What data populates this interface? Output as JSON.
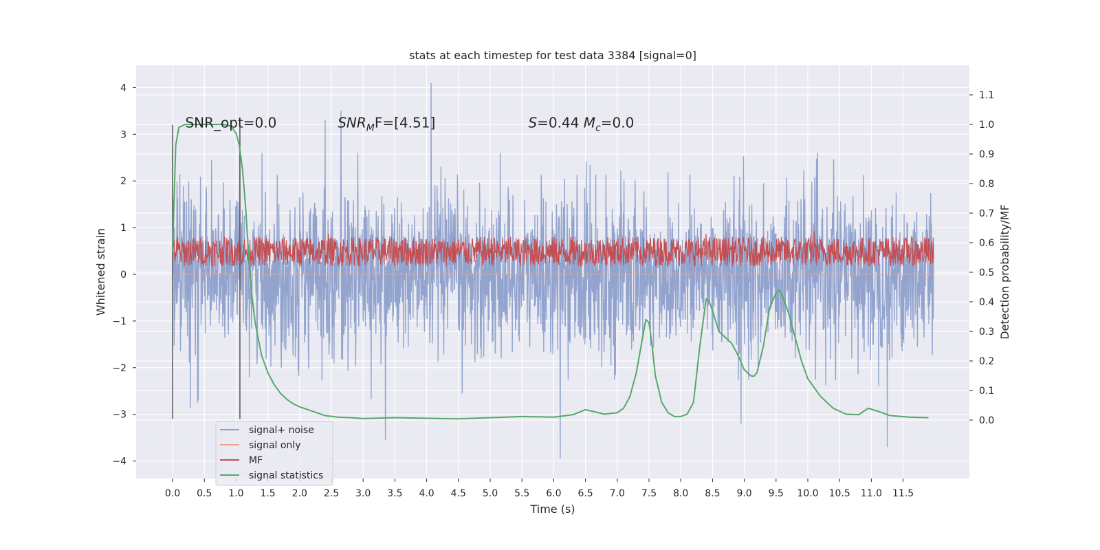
{
  "chart_data": {
    "type": "line",
    "title": "stats at each timestep for test data 3384 [signal=0]",
    "xlabel": "Time (s)",
    "ylabel_left": "Whitened strain",
    "ylabel_right": "Detection probability/MF",
    "xlim": [
      -0.5,
      12.5
    ],
    "ylim_left": [
      -4.4,
      4.5
    ],
    "ylim_right": [
      -0.2,
      1.2
    ],
    "x_ticks": [
      0.0,
      0.5,
      1.0,
      1.5,
      2.0,
      2.5,
      3.0,
      3.5,
      4.0,
      4.5,
      5.0,
      5.5,
      6.0,
      6.5,
      7.0,
      7.5,
      8.0,
      8.5,
      9.0,
      9.5,
      10.0,
      10.5,
      11.0,
      11.5
    ],
    "x_tick_labels": [
      "0.0",
      "0.5",
      "1.0",
      "1.5",
      "2.0",
      "2.5",
      "3.0",
      "3.5",
      "4.0",
      "4.5",
      "5.0",
      "5.5",
      "6.0",
      "6.5",
      "7.0",
      "7.5",
      "8.0",
      "8.5",
      "9.0",
      "9.5",
      "10.0",
      "10.5",
      "11.0",
      "11.5"
    ],
    "y_left_ticks": [
      -4,
      -3,
      -2,
      -1,
      0,
      1,
      2,
      3,
      4
    ],
    "y_left_tick_labels": [
      "−4",
      "−3",
      "−2",
      "−1",
      "0",
      "1",
      "2",
      "3",
      "4"
    ],
    "y_right_ticks": [
      0.0,
      0.1,
      0.2,
      0.3,
      0.4,
      0.5,
      0.6,
      0.7,
      0.8,
      0.9,
      1.0,
      1.1
    ],
    "y_right_tick_labels": [
      "0.0",
      "0.1",
      "0.2",
      "0.3",
      "0.4",
      "0.5",
      "0.6",
      "0.7",
      "0.8",
      "0.9",
      "1.0",
      "1.1"
    ],
    "grid": true,
    "legend_position": "lower-left",
    "series": [
      {
        "name": "signal+ noise",
        "axis": "left",
        "color": "#8da0cb",
        "x_range": [
          0.0,
          11.98
        ],
        "band_core": [
          -1.3,
          1.3
        ],
        "band_spikes": [
          -2.9,
          2.6
        ],
        "peaks": [
          [
            4.07,
            4.1
          ],
          [
            2.65,
            3.5
          ],
          [
            6.1,
            -3.95
          ],
          [
            3.35,
            -3.55
          ],
          [
            11.25,
            -3.7
          ],
          [
            8.95,
            -3.2
          ],
          [
            2.4,
            3.3
          ]
        ]
      },
      {
        "name": "signal only",
        "axis": "left",
        "color": "#e9a38e",
        "x": [
          0.0,
          11.98
        ],
        "y": [
          0.0,
          0.0
        ]
      },
      {
        "name": "MF",
        "axis": "right",
        "color": "#c44e52",
        "x_range": [
          0.0,
          11.98
        ],
        "band": [
          0.52,
          0.62
        ],
        "peaks": [
          [
            10.1,
            0.64
          ],
          [
            2.45,
            0.63
          ],
          [
            8.4,
            0.63
          ],
          [
            0.08,
            0.62
          ]
        ]
      },
      {
        "name": "signal statistics",
        "axis": "right",
        "color": "#55a868",
        "x": [
          0.0,
          0.05,
          0.1,
          0.15,
          0.2,
          0.3,
          0.5,
          0.8,
          0.9,
          0.95,
          1.0,
          1.05,
          1.1,
          1.15,
          1.2,
          1.25,
          1.3,
          1.4,
          1.5,
          1.6,
          1.7,
          1.8,
          1.9,
          2.0,
          2.2,
          2.4,
          2.6,
          2.8,
          3.0,
          3.5,
          4.0,
          4.5,
          5.0,
          5.5,
          6.0,
          6.3,
          6.5,
          6.6,
          6.8,
          7.0,
          7.1,
          7.2,
          7.3,
          7.4,
          7.45,
          7.5,
          7.55,
          7.6,
          7.7,
          7.8,
          7.9,
          8.0,
          8.1,
          8.2,
          8.3,
          8.4,
          8.45,
          8.5,
          8.6,
          8.7,
          8.8,
          8.9,
          9.0,
          9.1,
          9.15,
          9.2,
          9.3,
          9.4,
          9.5,
          9.55,
          9.6,
          9.7,
          9.8,
          9.9,
          10.0,
          10.2,
          10.4,
          10.6,
          10.8,
          10.95,
          11.1,
          11.3,
          11.6,
          11.9
        ],
        "y": [
          0.57,
          0.93,
          0.99,
          0.995,
          1.0,
          1.0,
          1.0,
          1.0,
          0.995,
          0.985,
          0.97,
          0.93,
          0.85,
          0.72,
          0.55,
          0.42,
          0.33,
          0.22,
          0.16,
          0.12,
          0.09,
          0.07,
          0.055,
          0.045,
          0.03,
          0.015,
          0.01,
          0.008,
          0.005,
          0.008,
          0.006,
          0.004,
          0.008,
          0.012,
          0.01,
          0.018,
          0.035,
          0.03,
          0.02,
          0.025,
          0.04,
          0.08,
          0.16,
          0.28,
          0.34,
          0.33,
          0.25,
          0.15,
          0.06,
          0.025,
          0.012,
          0.012,
          0.02,
          0.06,
          0.25,
          0.41,
          0.4,
          0.37,
          0.3,
          0.28,
          0.26,
          0.22,
          0.17,
          0.15,
          0.148,
          0.16,
          0.25,
          0.38,
          0.43,
          0.44,
          0.42,
          0.36,
          0.28,
          0.2,
          0.14,
          0.08,
          0.04,
          0.02,
          0.018,
          0.04,
          0.03,
          0.015,
          0.01,
          0.008
        ]
      }
    ],
    "vertical_markers": {
      "color": "#555555",
      "x": [
        0.0,
        1.06
      ],
      "y_left_range": [
        -3.1,
        3.2
      ]
    },
    "annotations": [
      {
        "text": "SNR_opt=0.0",
        "x": 0.2,
        "y_left": 3.25
      },
      {
        "parts": [
          {
            "t": "SNR",
            "it": true
          },
          {
            "t": "M",
            "it": true,
            "sub": true
          },
          {
            "t": "F=[4.51]",
            "it": false
          }
        ],
        "x": 2.6,
        "y_left": 3.25
      },
      {
        "parts": [
          {
            "t": "S",
            "it": true
          },
          {
            "t": "=0.44   ",
            "it": false
          },
          {
            "t": "M",
            "it": true
          },
          {
            "t": "c",
            "it": true,
            "sub": true
          },
          {
            "t": "=0.0",
            "it": false
          }
        ],
        "x": 5.6,
        "y_left": 3.25
      }
    ]
  }
}
